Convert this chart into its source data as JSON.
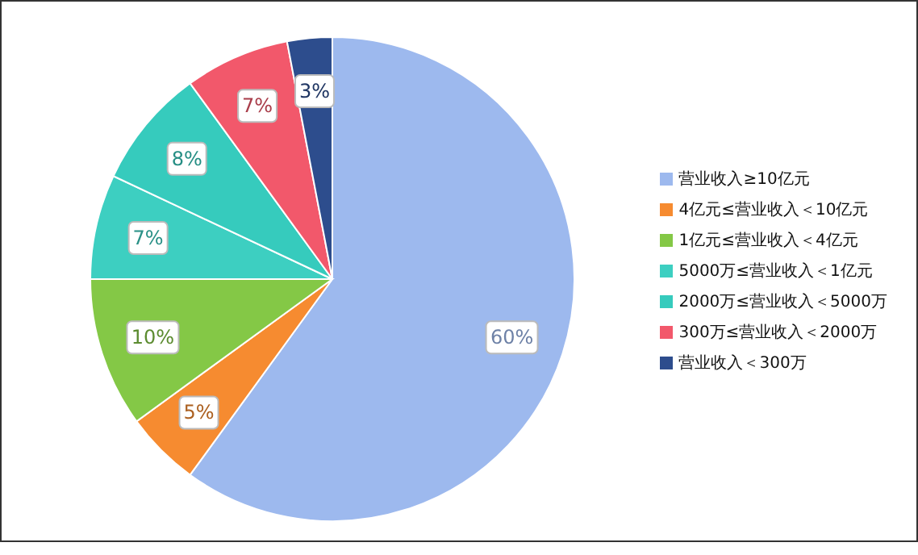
{
  "chart_data": {
    "type": "pie",
    "categories": [
      "营业收入≥10亿元",
      "4亿元≤营业收入＜10亿元",
      "1亿元≤营业收入＜4亿元",
      "5000万≤营业收入＜1亿元",
      "2000万≤营业收入＜5000万",
      "300万≤营业收入＜2000万",
      "营业收入＜300万"
    ],
    "values": [
      60,
      5,
      10,
      7,
      8,
      7,
      3
    ],
    "colors": [
      "#9db9ee",
      "#f68b30",
      "#84c846",
      "#3dcfc1",
      "#36cbbd",
      "#f2586b",
      "#2d4d8d"
    ],
    "value_labels": [
      "60%",
      "5%",
      "10%",
      "7%",
      "8%",
      "7%",
      "3%"
    ],
    "legend": "right"
  }
}
